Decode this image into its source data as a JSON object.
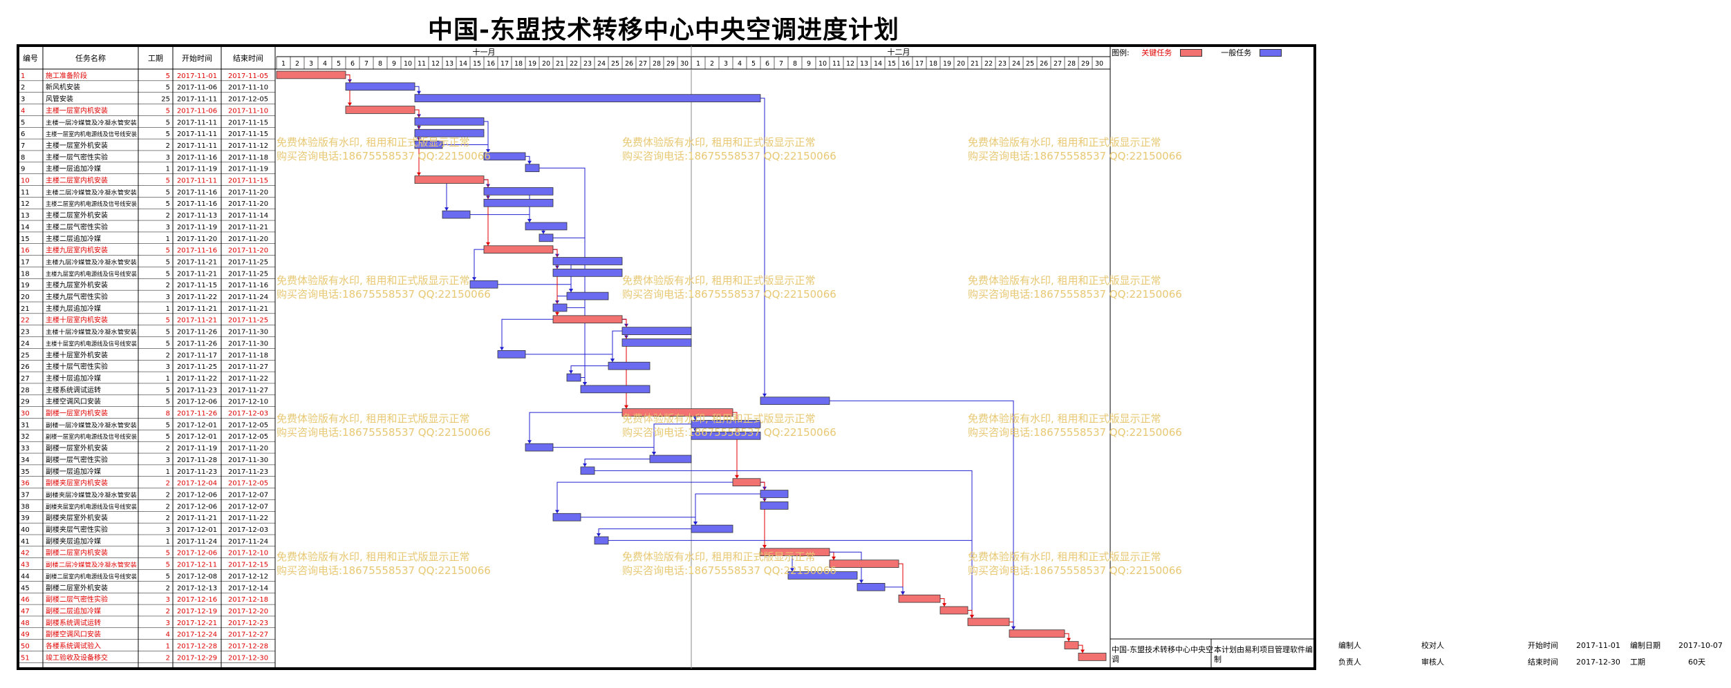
{
  "title": "中国-东盟技术转移中心中央空调进度计划",
  "headers": {
    "no": "编号",
    "name": "任务名称",
    "duration": "工期",
    "start": "开始时间",
    "end": "结束时间"
  },
  "months": [
    "十一月",
    "十二月"
  ],
  "legend": {
    "label": "图例:",
    "critical": "关键任务",
    "normal": "一般任务",
    "critical_color": "#f27272",
    "normal_color": "#6b6bf2"
  },
  "watermark": {
    "line1": "免费体验版有水印, 租用和正式版显示正常",
    "line2": "购买咨询电话:18675558537 QQ:22150066"
  },
  "project_name": "中国-东盟技术转移中心中央空调",
  "compiler_note": "本计划由易利项目管理软件编制",
  "footer": {
    "compiler_label": "编制人",
    "checker_label": "校对人",
    "start_label": "开始时间",
    "start_value": "2017-11-01",
    "compile_date_label": "编制日期",
    "compile_date_value": "2017-10-07",
    "owner_label": "负责人",
    "reviewer_label": "审核人",
    "end_label": "结束时间",
    "end_value": "2017-12-30",
    "period_label": "工期",
    "period_value": "60天"
  },
  "tasks": [
    {
      "no": "1",
      "name": "施工准备阶段",
      "dur": "5",
      "start": "2017-11-01",
      "end": "2017-11-05",
      "crit": true,
      "s": 1,
      "e": 5
    },
    {
      "no": "2",
      "name": "新风机安装",
      "dur": "5",
      "start": "2017-11-06",
      "end": "2017-11-10",
      "crit": false,
      "s": 6,
      "e": 10
    },
    {
      "no": "3",
      "name": "风管安装",
      "dur": "25",
      "start": "2017-11-11",
      "end": "2017-12-05",
      "crit": false,
      "s": 11,
      "e": 35
    },
    {
      "no": "4",
      "name": "主楼一层室内机安装",
      "dur": "5",
      "start": "2017-11-06",
      "end": "2017-11-10",
      "crit": true,
      "s": 6,
      "e": 10
    },
    {
      "no": "5",
      "name": "主楼一层冷媒管及冷凝水管安装",
      "dur": "5",
      "start": "2017-11-11",
      "end": "2017-11-15",
      "crit": false,
      "s": 11,
      "e": 15
    },
    {
      "no": "6",
      "name": "主楼一层室内机电源线及信号线安装",
      "dur": "5",
      "start": "2017-11-11",
      "end": "2017-11-15",
      "crit": false,
      "s": 11,
      "e": 15
    },
    {
      "no": "7",
      "name": "主楼一层室外机安装",
      "dur": "2",
      "start": "2017-11-11",
      "end": "2017-11-12",
      "crit": false,
      "s": 11,
      "e": 12
    },
    {
      "no": "8",
      "name": "主楼一层气密性实验",
      "dur": "3",
      "start": "2017-11-16",
      "end": "2017-11-18",
      "crit": false,
      "s": 16,
      "e": 18
    },
    {
      "no": "9",
      "name": "主楼一层追加冷媒",
      "dur": "1",
      "start": "2017-11-19",
      "end": "2017-11-19",
      "crit": false,
      "s": 19,
      "e": 19
    },
    {
      "no": "10",
      "name": "主楼二层室内机安装",
      "dur": "5",
      "start": "2017-11-11",
      "end": "2017-11-15",
      "crit": true,
      "s": 11,
      "e": 15
    },
    {
      "no": "11",
      "name": "主楼二层冷媒管及冷凝水管安装",
      "dur": "5",
      "start": "2017-11-16",
      "end": "2017-11-20",
      "crit": false,
      "s": 16,
      "e": 20
    },
    {
      "no": "12",
      "name": "主楼二层室内机电源线及信号线安装",
      "dur": "5",
      "start": "2017-11-16",
      "end": "2017-11-20",
      "crit": false,
      "s": 16,
      "e": 20
    },
    {
      "no": "13",
      "name": "主楼二层室外机安装",
      "dur": "2",
      "start": "2017-11-13",
      "end": "2017-11-14",
      "crit": false,
      "s": 13,
      "e": 14
    },
    {
      "no": "14",
      "name": "主楼二层气密性实验",
      "dur": "3",
      "start": "2017-11-19",
      "end": "2017-11-21",
      "crit": false,
      "s": 19,
      "e": 21
    },
    {
      "no": "15",
      "name": "主楼二层追加冷媒",
      "dur": "1",
      "start": "2017-11-20",
      "end": "2017-11-20",
      "crit": false,
      "s": 20,
      "e": 20
    },
    {
      "no": "16",
      "name": "主楼九层室内机安装",
      "dur": "5",
      "start": "2017-11-16",
      "end": "2017-11-20",
      "crit": true,
      "s": 16,
      "e": 20
    },
    {
      "no": "17",
      "name": "主楼九层冷媒管及冷凝水管安装",
      "dur": "5",
      "start": "2017-11-21",
      "end": "2017-11-25",
      "crit": false,
      "s": 21,
      "e": 25
    },
    {
      "no": "18",
      "name": "主楼九层室内机电源线及信号线安装",
      "dur": "5",
      "start": "2017-11-21",
      "end": "2017-11-25",
      "crit": false,
      "s": 21,
      "e": 25
    },
    {
      "no": "19",
      "name": "主楼九层室外机安装",
      "dur": "2",
      "start": "2017-11-15",
      "end": "2017-11-16",
      "crit": false,
      "s": 15,
      "e": 16
    },
    {
      "no": "20",
      "name": "主楼九层气密性实验",
      "dur": "3",
      "start": "2017-11-22",
      "end": "2017-11-24",
      "crit": false,
      "s": 22,
      "e": 24
    },
    {
      "no": "21",
      "name": "主楼九层追加冷媒",
      "dur": "1",
      "start": "2017-11-21",
      "end": "2017-11-21",
      "crit": false,
      "s": 21,
      "e": 21
    },
    {
      "no": "22",
      "name": "主楼十层室内机安装",
      "dur": "5",
      "start": "2017-11-21",
      "end": "2017-11-25",
      "crit": true,
      "s": 21,
      "e": 25
    },
    {
      "no": "23",
      "name": "主楼十层冷媒管及冷凝水管安装",
      "dur": "5",
      "start": "2017-11-26",
      "end": "2017-11-30",
      "crit": false,
      "s": 26,
      "e": 30
    },
    {
      "no": "24",
      "name": "主楼十层室内机电源线及信号线安装",
      "dur": "5",
      "start": "2017-11-26",
      "end": "2017-11-30",
      "crit": false,
      "s": 26,
      "e": 30
    },
    {
      "no": "25",
      "name": "主楼十层室外机安装",
      "dur": "2",
      "start": "2017-11-17",
      "end": "2017-11-18",
      "crit": false,
      "s": 17,
      "e": 18
    },
    {
      "no": "26",
      "name": "主楼十层气密性实验",
      "dur": "3",
      "start": "2017-11-25",
      "end": "2017-11-27",
      "crit": false,
      "s": 25,
      "e": 27
    },
    {
      "no": "27",
      "name": "主楼十层追加冷媒",
      "dur": "1",
      "start": "2017-11-22",
      "end": "2017-11-22",
      "crit": false,
      "s": 22,
      "e": 22
    },
    {
      "no": "28",
      "name": "主楼系统调试运转",
      "dur": "5",
      "start": "2017-11-23",
      "end": "2017-11-27",
      "crit": false,
      "s": 23,
      "e": 27
    },
    {
      "no": "29",
      "name": "主楼空调风口安装",
      "dur": "5",
      "start": "2017-12-06",
      "end": "2017-12-10",
      "crit": false,
      "s": 36,
      "e": 40
    },
    {
      "no": "30",
      "name": "副楼一层室内机安装",
      "dur": "8",
      "start": "2017-11-26",
      "end": "2017-12-03",
      "crit": true,
      "s": 26,
      "e": 33
    },
    {
      "no": "31",
      "name": "副楼一层冷媒管及冷凝水管安装",
      "dur": "5",
      "start": "2017-12-01",
      "end": "2017-12-05",
      "crit": false,
      "s": 31,
      "e": 35
    },
    {
      "no": "32",
      "name": "副楼一层室内机电源线及信号线安装",
      "dur": "5",
      "start": "2017-12-01",
      "end": "2017-12-05",
      "crit": false,
      "s": 31,
      "e": 35
    },
    {
      "no": "33",
      "name": "副楼一层室外机安装",
      "dur": "2",
      "start": "2017-11-19",
      "end": "2017-11-20",
      "crit": false,
      "s": 19,
      "e": 20
    },
    {
      "no": "34",
      "name": "副楼一层气密性实验",
      "dur": "3",
      "start": "2017-11-28",
      "end": "2017-11-30",
      "crit": false,
      "s": 28,
      "e": 30
    },
    {
      "no": "35",
      "name": "副楼一层追加冷媒",
      "dur": "1",
      "start": "2017-11-23",
      "end": "2017-11-23",
      "crit": false,
      "s": 23,
      "e": 23
    },
    {
      "no": "36",
      "name": "副楼夹层室内机安装",
      "dur": "2",
      "start": "2017-12-04",
      "end": "2017-12-05",
      "crit": true,
      "s": 34,
      "e": 35
    },
    {
      "no": "37",
      "name": "副楼夹层冷媒管及冷凝水管安装",
      "dur": "2",
      "start": "2017-12-06",
      "end": "2017-12-07",
      "crit": false,
      "s": 36,
      "e": 37
    },
    {
      "no": "38",
      "name": "副楼夹层室内机电源线及信号线安装",
      "dur": "2",
      "start": "2017-12-06",
      "end": "2017-12-07",
      "crit": false,
      "s": 36,
      "e": 37
    },
    {
      "no": "39",
      "name": "副楼夹层室外机安装",
      "dur": "2",
      "start": "2017-11-21",
      "end": "2017-11-22",
      "crit": false,
      "s": 21,
      "e": 22
    },
    {
      "no": "40",
      "name": "副楼夹层气密性实验",
      "dur": "3",
      "start": "2017-12-01",
      "end": "2017-12-03",
      "crit": false,
      "s": 31,
      "e": 33
    },
    {
      "no": "41",
      "name": "副楼夹层追加冷媒",
      "dur": "1",
      "start": "2017-11-24",
      "end": "2017-11-24",
      "crit": false,
      "s": 24,
      "e": 24
    },
    {
      "no": "42",
      "name": "副楼二层室内机安装",
      "dur": "5",
      "start": "2017-12-06",
      "end": "2017-12-10",
      "crit": true,
      "s": 36,
      "e": 40
    },
    {
      "no": "43",
      "name": "副楼二层冷媒管及冷凝水管安装",
      "dur": "5",
      "start": "2017-12-11",
      "end": "2017-12-15",
      "crit": true,
      "s": 41,
      "e": 45
    },
    {
      "no": "44",
      "name": "副楼二层室内机电源线及信号线安装",
      "dur": "5",
      "start": "2017-12-08",
      "end": "2017-12-12",
      "crit": false,
      "s": 38,
      "e": 42
    },
    {
      "no": "45",
      "name": "副楼二层室外机安装",
      "dur": "2",
      "start": "2017-12-13",
      "end": "2017-12-14",
      "crit": false,
      "s": 43,
      "e": 44
    },
    {
      "no": "46",
      "name": "副楼二层气密性实验",
      "dur": "3",
      "start": "2017-12-16",
      "end": "2017-12-18",
      "crit": true,
      "s": 46,
      "e": 48
    },
    {
      "no": "47",
      "name": "副楼二层追加冷媒",
      "dur": "2",
      "start": "2017-12-19",
      "end": "2017-12-20",
      "crit": true,
      "s": 49,
      "e": 50
    },
    {
      "no": "48",
      "name": "副楼系统调试运转",
      "dur": "3",
      "start": "2017-12-21",
      "end": "2017-12-23",
      "crit": true,
      "s": 51,
      "e": 53
    },
    {
      "no": "49",
      "name": "副楼空调风口安装",
      "dur": "4",
      "start": "2017-12-24",
      "end": "2017-12-27",
      "crit": true,
      "s": 54,
      "e": 57
    },
    {
      "no": "50",
      "name": "各楼系统调试验入",
      "dur": "1",
      "start": "2017-12-28",
      "end": "2017-12-28",
      "crit": true,
      "s": 58,
      "e": 58
    },
    {
      "no": "51",
      "name": "竣工验收及设备移交",
      "dur": "2",
      "start": "2017-12-29",
      "end": "2017-12-30",
      "crit": true,
      "s": 59,
      "e": 60
    }
  ],
  "links": [
    [
      1,
      2
    ],
    [
      1,
      4
    ],
    [
      2,
      3
    ],
    [
      4,
      5
    ],
    [
      4,
      6
    ],
    [
      4,
      7
    ],
    [
      4,
      10
    ],
    [
      5,
      8
    ],
    [
      7,
      8
    ],
    [
      8,
      9
    ],
    [
      10,
      11
    ],
    [
      10,
      12
    ],
    [
      10,
      13
    ],
    [
      11,
      14
    ],
    [
      13,
      14
    ],
    [
      14,
      15
    ],
    [
      10,
      16
    ],
    [
      16,
      17
    ],
    [
      16,
      18
    ],
    [
      16,
      19
    ],
    [
      17,
      20
    ],
    [
      19,
      20
    ],
    [
      20,
      21
    ],
    [
      16,
      22
    ],
    [
      22,
      23
    ],
    [
      22,
      24
    ],
    [
      22,
      25
    ],
    [
      23,
      26
    ],
    [
      25,
      26
    ],
    [
      26,
      27
    ],
    [
      9,
      28
    ],
    [
      15,
      28
    ],
    [
      21,
      28
    ],
    [
      27,
      28
    ],
    [
      3,
      29
    ],
    [
      22,
      30
    ],
    [
      30,
      31
    ],
    [
      30,
      32
    ],
    [
      30,
      33
    ],
    [
      31,
      34
    ],
    [
      33,
      34
    ],
    [
      34,
      35
    ],
    [
      30,
      36
    ],
    [
      36,
      37
    ],
    [
      36,
      38
    ],
    [
      36,
      39
    ],
    [
      37,
      40
    ],
    [
      39,
      40
    ],
    [
      40,
      41
    ],
    [
      36,
      42
    ],
    [
      42,
      43
    ],
    [
      42,
      44
    ],
    [
      42,
      45
    ],
    [
      43,
      46
    ],
    [
      45,
      46
    ],
    [
      46,
      47
    ],
    [
      35,
      48
    ],
    [
      41,
      48
    ],
    [
      47,
      48
    ],
    [
      48,
      49
    ],
    [
      29,
      49
    ],
    [
      49,
      50
    ],
    [
      50,
      51
    ]
  ]
}
